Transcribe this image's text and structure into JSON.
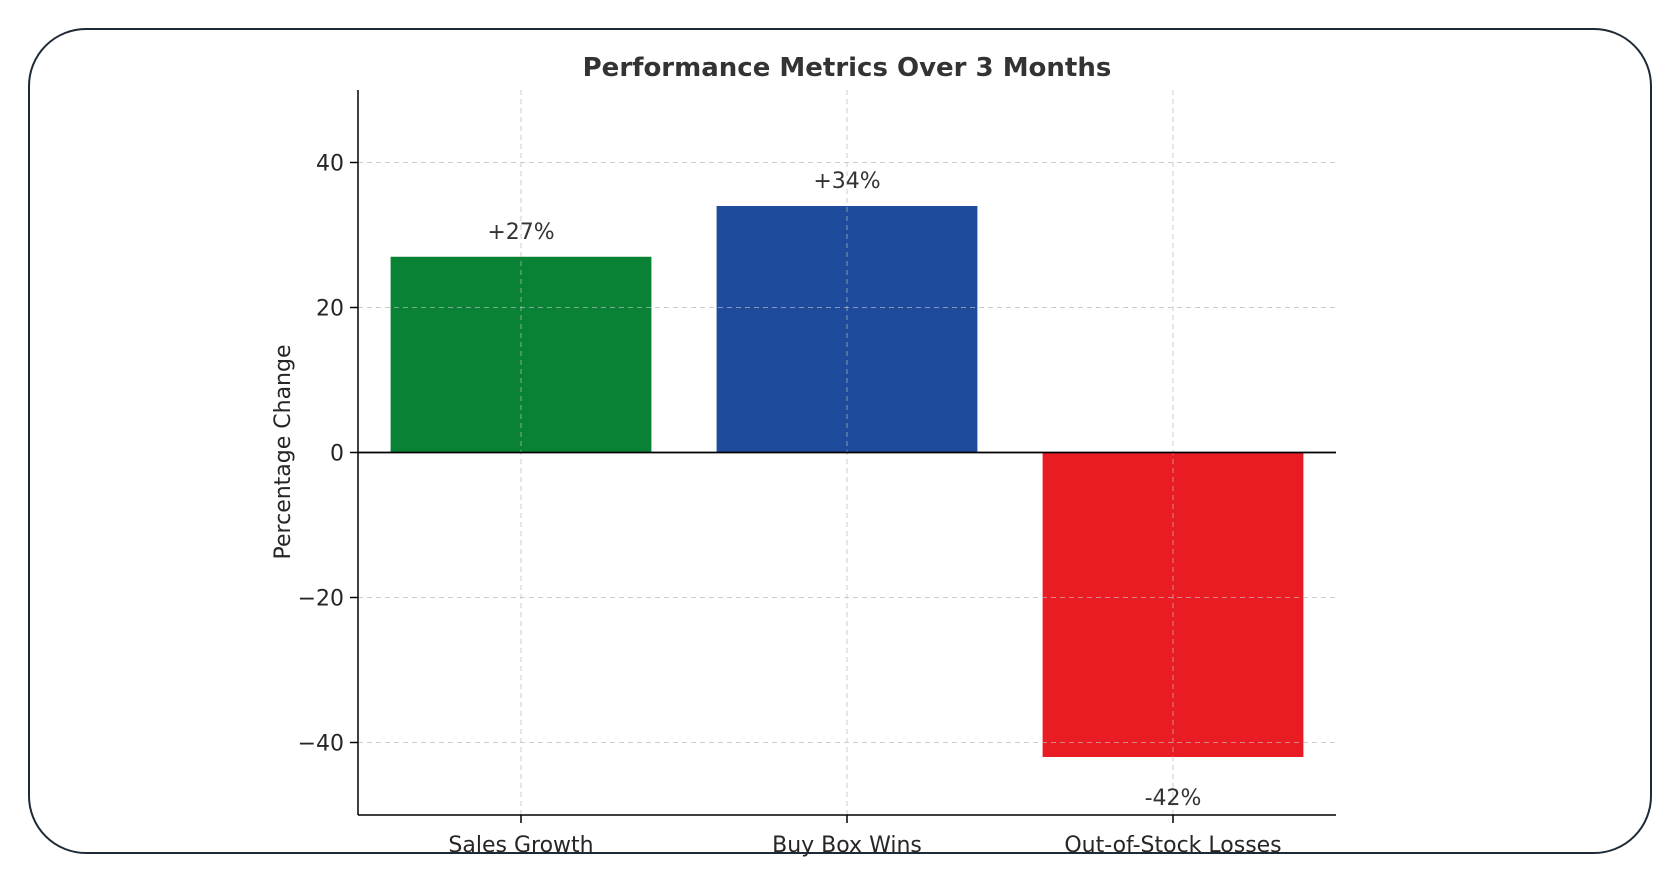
{
  "chart_data": {
    "type": "bar",
    "title": "Performance Metrics Over 3 Months",
    "xlabel": "",
    "ylabel": "Percentage Change",
    "categories": [
      "Sales Growth",
      "Buy Box Wins",
      "Out-of-Stock Losses"
    ],
    "values": [
      27,
      34,
      -42
    ],
    "data_labels": [
      "+27%",
      "+34%",
      "-42%"
    ],
    "colors": [
      "#0a8236",
      "#1f4b9c",
      "#e81c22"
    ],
    "ylim": [
      -50,
      50
    ],
    "yticks": [
      -40,
      -20,
      0,
      20,
      40
    ],
    "ytick_labels": [
      "−40",
      "−20",
      "0",
      "20",
      "40"
    ],
    "grid": true,
    "zero_line": true
  }
}
